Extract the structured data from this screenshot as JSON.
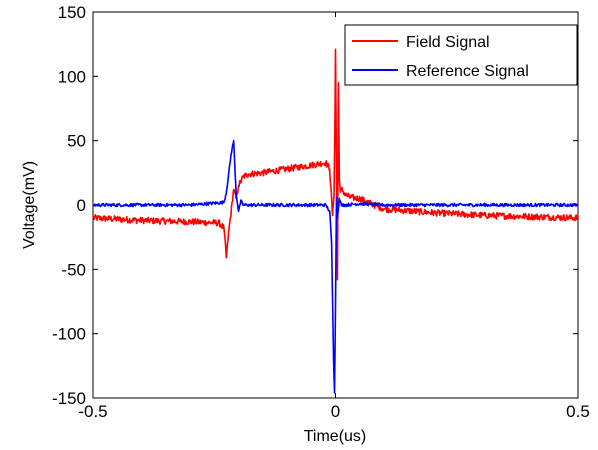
{
  "chart_data": {
    "type": "line",
    "xlabel": "Time(us)",
    "ylabel": "Voltage(mV)",
    "xlim": [
      -0.5,
      0.5
    ],
    "ylim": [
      -150,
      150
    ],
    "xticks": [
      -0.5,
      0,
      0.5
    ],
    "xtick_labels": [
      "-0.5",
      "0",
      "0.5"
    ],
    "yticks": [
      -150,
      -100,
      -50,
      0,
      50,
      100,
      150
    ],
    "ytick_labels": [
      "-150",
      "-100",
      "-50",
      "0",
      "50",
      "100",
      "150"
    ],
    "grid": false,
    "legend_position": "top-right",
    "series": [
      {
        "name": "Field Signal",
        "color": "#ff0000",
        "x": [
          -0.5,
          -0.4,
          -0.3,
          -0.24,
          -0.23,
          -0.225,
          -0.22,
          -0.215,
          -0.21,
          -0.205,
          -0.2,
          -0.19,
          -0.18,
          -0.15,
          -0.1,
          -0.05,
          -0.02,
          -0.012,
          -0.006,
          -0.003,
          -0.001,
          0.0,
          0.002,
          0.004,
          0.006,
          0.008,
          0.01,
          0.014,
          0.02,
          0.03,
          0.05,
          0.08,
          0.1,
          0.2,
          0.3,
          0.4,
          0.5
        ],
        "y": [
          -10,
          -12,
          -13,
          -14,
          -18,
          -41,
          -20,
          -5,
          12,
          5,
          15,
          22,
          24,
          25,
          28,
          31,
          33,
          28,
          -8,
          10,
          70,
          121,
          30,
          -58,
          95,
          20,
          10,
          12,
          8,
          6,
          5,
          0,
          -3,
          -6,
          -8,
          -9,
          -10
        ],
        "noise": 2.5
      },
      {
        "name": "Reference Signal",
        "color": "#0000ff",
        "x": [
          -0.5,
          -0.3,
          -0.23,
          -0.225,
          -0.22,
          -0.215,
          -0.21,
          -0.205,
          -0.2,
          -0.195,
          -0.19,
          -0.18,
          -0.1,
          -0.02,
          -0.012,
          -0.008,
          -0.004,
          -0.002,
          0.0,
          0.002,
          0.004,
          0.008,
          0.012,
          0.02,
          0.05,
          0.1,
          0.2,
          0.5
        ],
        "y": [
          0,
          0,
          2,
          10,
          25,
          40,
          50,
          10,
          -5,
          3,
          0,
          0,
          0,
          0,
          -5,
          -30,
          -120,
          -146,
          -80,
          6,
          -10,
          5,
          0,
          0,
          1,
          0,
          0,
          0
        ],
        "noise": 1.2
      }
    ]
  }
}
